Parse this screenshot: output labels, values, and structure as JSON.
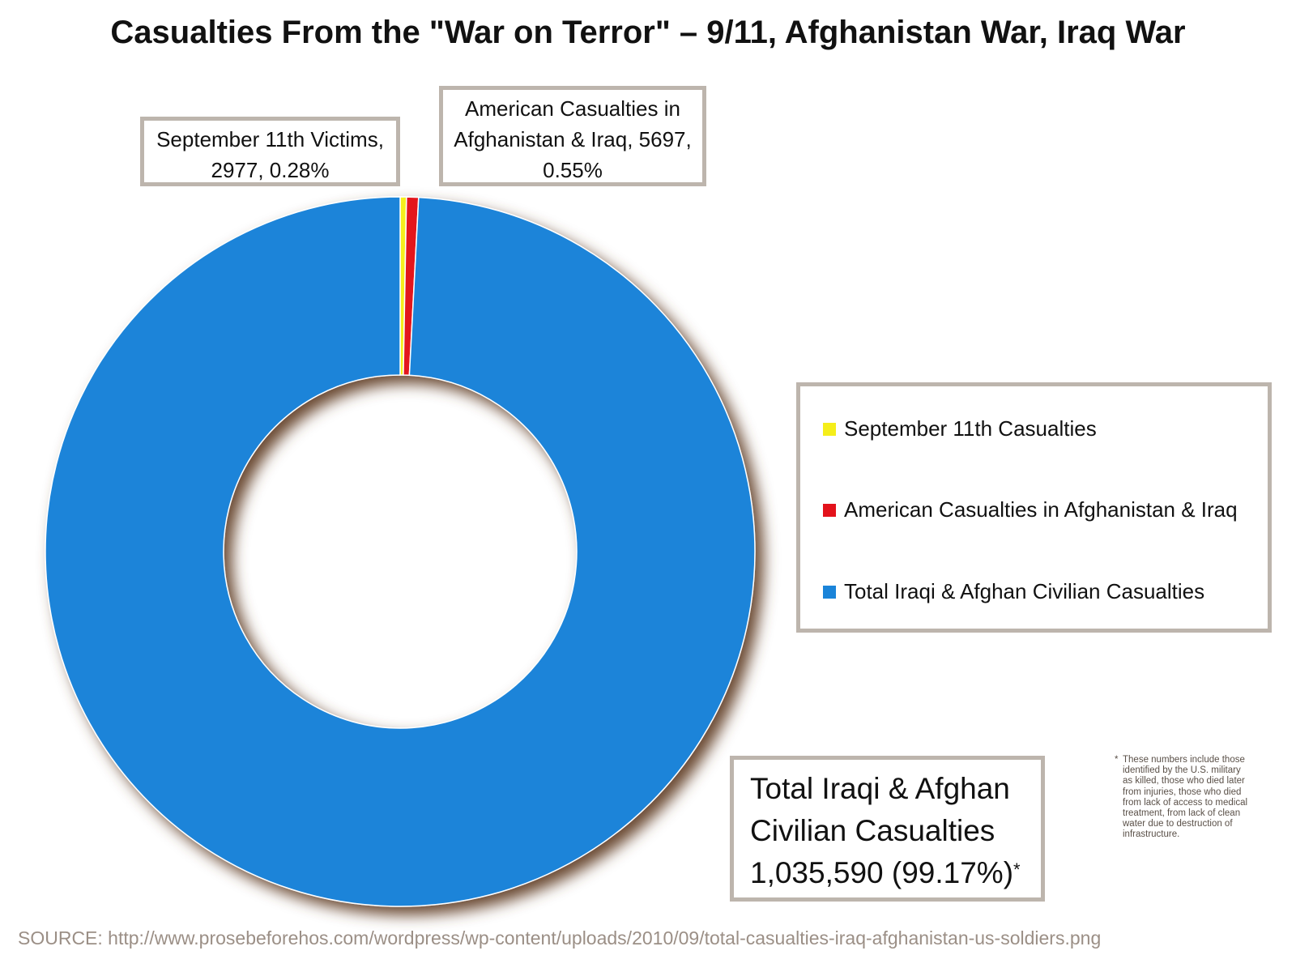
{
  "title": "Casualties From the \"War on Terror\" – 9/11, Afghanistan War, Iraq War",
  "chart_data": {
    "type": "pie",
    "subtype": "donut",
    "slices": [
      {
        "name": "September 11th Casualties",
        "value": 2977,
        "percent": 0.28,
        "color": "#f5ee1a"
      },
      {
        "name": "American Casualties in Afghanistan & Iraq",
        "value": 5697,
        "percent": 0.55,
        "color": "#e3121b"
      },
      {
        "name": "Total Iraqi & Afghan Civilian Casualties",
        "value": 1035590,
        "percent": 99.17,
        "color": "#1a84d9"
      }
    ],
    "legend_position": "right",
    "legend": [
      "September 11th Casualties",
      "American Casualties in Afghanistan & Iraq",
      "Total Iraqi & Afghan Civilian Casualties"
    ]
  },
  "labels": {
    "sept11": [
      "September 11th Victims,",
      "2977, 0.28%"
    ],
    "american": [
      "American Casualties in",
      "Afghanistan & Iraq, 5697,",
      "0.55%"
    ],
    "civilian": [
      "Total Iraqi & Afghan",
      "Civilian Casualties",
      "1,035,590 (99.17%)"
    ],
    "civilian_mark": "*"
  },
  "footnote": {
    "mark": "*",
    "lines": [
      "These numbers include those",
      "identified by the U.S. military",
      "as killed, those who died later",
      "from injuries, those who died",
      "from lack of access to medical",
      "treatment, from lack of clean",
      "water due to destruction of",
      "infrastructure."
    ]
  },
  "source": "SOURCE: http://www.prosebeforehos.com/wordpress/wp-content/uploads/2010/09/total-casualties-iraq-afghanistan-us-soldiers.png",
  "colors": {
    "sept11": "#f5ee1a",
    "american": "#e3121b",
    "civilian": "#1a84d9",
    "box_border": "#bdb5ad",
    "source_text": "#9b8f86"
  }
}
